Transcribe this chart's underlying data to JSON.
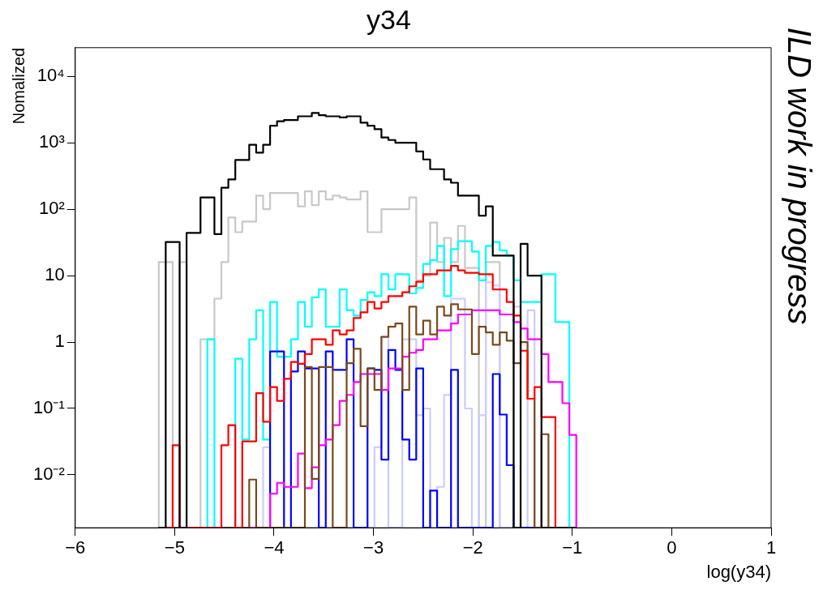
{
  "chart_data": {
    "type": "histogram",
    "title": "y34",
    "xlabel": "log(y34)",
    "ylabel": "Nomalized",
    "annotations": [
      "ILD work in progress"
    ],
    "xlim": [
      -6,
      1
    ],
    "xticks": [
      -6,
      -5,
      -4,
      -3,
      -2,
      -1,
      0,
      1
    ],
    "ylim": [
      0.0016,
      27000
    ],
    "yticks": [
      {
        "value": 0.01,
        "label": "10⁻²"
      },
      {
        "value": 0.1,
        "label": "10⁻¹"
      },
      1,
      10,
      {
        "value": 100,
        "label": "10²"
      },
      {
        "value": 1000,
        "label": "10³"
      },
      {
        "value": 10000,
        "label": "10⁴"
      }
    ],
    "log": true,
    "bins": [
      -5.16,
      -5.09,
      -5.02,
      -4.95,
      -4.88,
      -4.81,
      -4.74,
      -4.67,
      -4.6,
      -4.53,
      -4.46,
      -4.39,
      -4.32,
      -4.25,
      -4.18,
      -4.11,
      -4.04,
      -3.97,
      -3.9,
      -3.83,
      -3.76,
      -3.69,
      -3.62,
      -3.55,
      -3.48,
      -3.41,
      -3.34,
      -3.27,
      -3.2,
      -3.13,
      -3.06,
      -2.99,
      -2.92,
      -2.85,
      -2.78,
      -2.71,
      -2.64,
      -2.57,
      -2.5,
      -2.43,
      -2.36,
      -2.29,
      -2.22,
      -2.15,
      -2.08,
      -2.01,
      -1.94,
      -1.87,
      -1.8,
      -1.73,
      -1.66,
      -1.59,
      -1.52,
      -1.45,
      -1.38,
      -1.31,
      -1.24,
      -1.17,
      -1.1,
      -1.03,
      -0.96
    ],
    "series": [
      {
        "color": "#c8c8c8",
        "values": [
          16,
          16,
          null,
          16,
          null,
          null,
          1.1,
          1.1,
          4.5,
          16,
          75,
          45,
          65,
          65,
          160,
          100,
          175,
          175,
          175,
          175,
          110,
          185,
          115,
          185,
          140,
          160,
          150,
          140,
          140,
          185,
          45,
          45,
          100,
          100,
          100,
          100,
          150,
          8.5,
          10,
          63,
          16,
          37,
          16,
          56,
          13,
          13,
          null,
          16,
          16,
          null,
          null,
          null,
          null,
          null,
          null,
          null,
          null,
          null,
          null,
          null
        ]
      },
      {
        "color": "#00ffff",
        "values": [
          null,
          null,
          null,
          null,
          null,
          null,
          null,
          1.1,
          null,
          null,
          null,
          0.56,
          0.034,
          1.1,
          3,
          0.034,
          4,
          0.6,
          0.6,
          1.1,
          4,
          1.7,
          4.7,
          6.2,
          1.7,
          1.7,
          6.2,
          3,
          2.5,
          4.3,
          5.6,
          4.9,
          10.5,
          6.2,
          10.5,
          10.5,
          5.4,
          6.5,
          15,
          17,
          28,
          4.9,
          25,
          33,
          33,
          23,
          8.5,
          28,
          32,
          24,
          20,
          8.5,
          4,
          4,
          4,
          10.5,
          10.5,
          2,
          2,
          null
        ]
      },
      {
        "color": "#ccccff",
        "values": [
          null,
          null,
          null,
          null,
          null,
          null,
          null,
          null,
          null,
          null,
          null,
          null,
          null,
          null,
          null,
          0.026,
          null,
          null,
          null,
          null,
          null,
          null,
          null,
          null,
          null,
          null,
          null,
          null,
          null,
          null,
          null,
          0.026,
          1.2,
          null,
          null,
          1.1,
          1.1,
          0.079,
          0.1,
          null,
          0.0066,
          0.16,
          4.5,
          4.5,
          0.1,
          null,
          0.079,
          7.9,
          7.1,
          null,
          null,
          3.4,
          null,
          3,
          null,
          null,
          null,
          null,
          null,
          null
        ]
      },
      {
        "color": "#0000ff",
        "values": [
          null,
          null,
          null,
          null,
          null,
          null,
          null,
          null,
          null,
          null,
          null,
          null,
          null,
          null,
          null,
          null,
          0.72,
          0.72,
          null,
          0.36,
          0.72,
          0.4,
          0.4,
          null,
          0.72,
          0.38,
          0.38,
          1.1,
          null,
          null,
          0.4,
          0.38,
          0.017,
          0.76,
          0.38,
          0.034,
          0.017,
          0.4,
          null,
          0.0058,
          null,
          null,
          0.38,
          null,
          null,
          null,
          null,
          null,
          0.33,
          0.081,
          0.014,
          null,
          null,
          null,
          null,
          null,
          null,
          null,
          null,
          null
        ]
      },
      {
        "color": "#ff00ff",
        "values": [
          null,
          null,
          null,
          null,
          null,
          null,
          null,
          null,
          null,
          null,
          null,
          null,
          null,
          null,
          null,
          null,
          0.0052,
          0.0076,
          0.0066,
          0.0066,
          0.021,
          0.0063,
          0.013,
          0.028,
          0.034,
          0.056,
          0.13,
          0.16,
          0.25,
          0.33,
          0.33,
          0.33,
          0.19,
          0.4,
          0.4,
          0.6,
          0.69,
          0.76,
          1.1,
          1.1,
          1.5,
          1.5,
          1.9,
          2.6,
          2.6,
          3,
          3,
          3,
          3,
          2.6,
          2.6,
          2,
          1.6,
          1.1,
          1.1,
          0.66,
          0.25,
          0.25,
          0.12,
          0.04
        ]
      },
      {
        "color": "#7a4a1a",
        "values": [
          null,
          null,
          null,
          null,
          null,
          null,
          null,
          null,
          null,
          null,
          null,
          null,
          null,
          0.0085,
          null,
          null,
          null,
          null,
          null,
          null,
          null,
          0.42,
          0.0087,
          0.42,
          0.42,
          null,
          null,
          0.48,
          0.79,
          0.054,
          0.4,
          0.19,
          1.2,
          1.7,
          1.9,
          0.19,
          3.4,
          1.3,
          2.1,
          1.3,
          3.4,
          2.5,
          3.7,
          3.1,
          3.1,
          0.66,
          1.7,
          1.4,
          0.91,
          1.4,
          1.05,
          0.48,
          1,
          0.14,
          null,
          0.041,
          null,
          null,
          null,
          null
        ]
      },
      {
        "color": "#ff0000",
        "values": [
          null,
          null,
          0.028,
          null,
          null,
          null,
          null,
          null,
          null,
          0.028,
          0.056,
          null,
          0.032,
          0.032,
          0.17,
          0.063,
          0.21,
          0.13,
          0.28,
          0.5,
          0.47,
          0.66,
          1.1,
          1.1,
          0.91,
          1.5,
          1.3,
          1.5,
          2.3,
          2.8,
          4,
          3.2,
          4,
          4.9,
          4.9,
          5.6,
          6.9,
          8.1,
          10.5,
          10.5,
          12,
          12,
          14,
          12,
          11,
          11,
          10.5,
          10.5,
          6.2,
          6.2,
          4,
          2.5,
          0.74,
          0.14,
          0.21,
          0.074,
          0.074,
          null,
          null,
          null
        ]
      },
      {
        "color": "#000000",
        "values": [
          null,
          32,
          32,
          null,
          44,
          44,
          150,
          150,
          42,
          210,
          280,
          550,
          550,
          930,
          710,
          930,
          1800,
          2100,
          2200,
          2200,
          2500,
          2500,
          2800,
          2600,
          2500,
          2500,
          2400,
          2500,
          2500,
          2000,
          1800,
          1600,
          1200,
          1100,
          1000,
          1000,
          1000,
          740,
          560,
          400,
          400,
          280,
          250,
          160,
          160,
          160,
          80,
          110,
          20,
          20,
          20,
          null,
          30,
          10,
          10,
          null,
          null,
          null,
          null,
          null
        ]
      }
    ]
  }
}
